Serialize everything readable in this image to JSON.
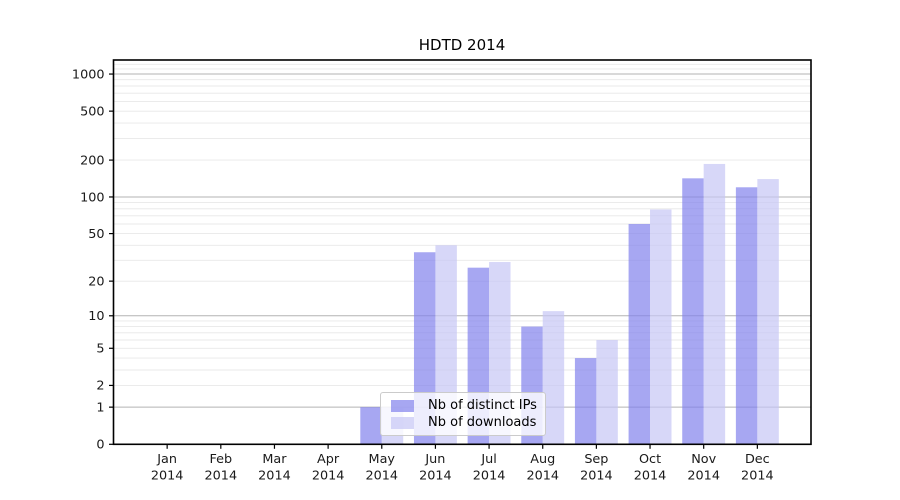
{
  "chart_data": {
    "type": "bar",
    "title": "HDTD 2014",
    "categories": [
      {
        "month": "Jan",
        "year": "2014"
      },
      {
        "month": "Feb",
        "year": "2014"
      },
      {
        "month": "Mar",
        "year": "2014"
      },
      {
        "month": "Apr",
        "year": "2014"
      },
      {
        "month": "May",
        "year": "2014"
      },
      {
        "month": "Jun",
        "year": "2014"
      },
      {
        "month": "Jul",
        "year": "2014"
      },
      {
        "month": "Aug",
        "year": "2014"
      },
      {
        "month": "Sep",
        "year": "2014"
      },
      {
        "month": "Oct",
        "year": "2014"
      },
      {
        "month": "Nov",
        "year": "2014"
      },
      {
        "month": "Dec",
        "year": "2014"
      }
    ],
    "series": [
      {
        "name": "Nb of distinct IPs",
        "color": "rgba(129,129,236,0.7)",
        "color_on_white": "#a7a7f2",
        "values": [
          0,
          0,
          0,
          0,
          1,
          35,
          26,
          8,
          4,
          60,
          142,
          120
        ]
      },
      {
        "name": "Nb of downloads",
        "color": "rgba(198,198,245,0.7)",
        "color_on_white": "#d7d7f8",
        "values": [
          0,
          0,
          0,
          0,
          1,
          40,
          29,
          11,
          6,
          79,
          186,
          140
        ]
      }
    ],
    "y_ticks": [
      0,
      1,
      2,
      5,
      10,
      20,
      50,
      100,
      200,
      500,
      1000
    ],
    "y_scale": "log-like (y proportional to log10(1+value))",
    "ylim": [
      0,
      1300
    ],
    "xlabel": "",
    "ylabel": "",
    "grid": true,
    "legend_position": "lower center",
    "colors": {
      "major_grid": "#b3b3b3",
      "minor_grid": "#e8e8e8",
      "axis": "#000000",
      "text": "#1a1a1a",
      "background": "#ffffff"
    }
  }
}
